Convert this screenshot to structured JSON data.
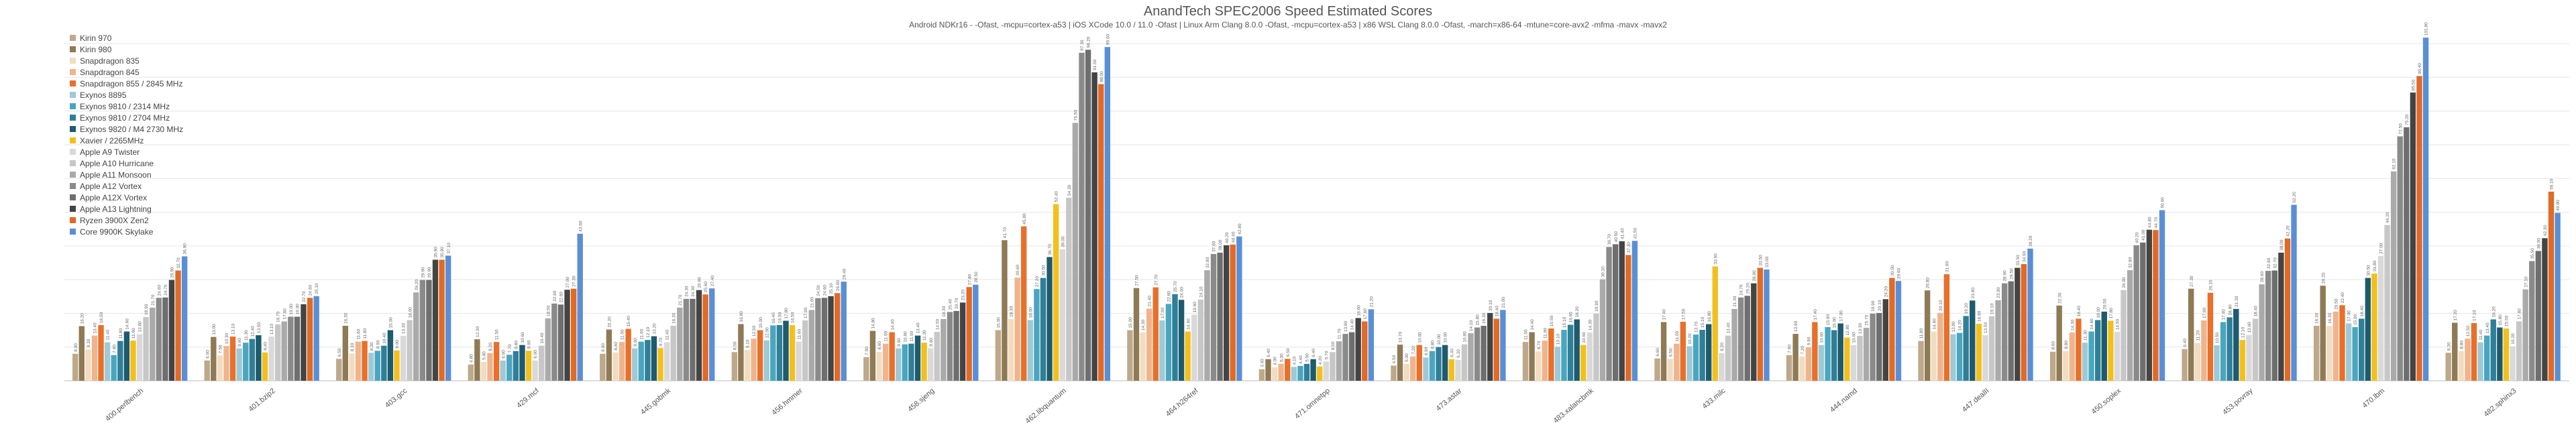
{
  "chart_data": {
    "type": "bar",
    "title": "AnandTech SPEC2006 Speed Estimated Scores",
    "subtitle": "Android NDKr16 - -Ofast, -mcpu=cortex-a53 | iOS XCode 10.0 / 11.0 -Ofast | Linux Arm Clang 8.0.0 -Ofast, -mcpu=cortex-a53 | x86 WSL Clang 8.0.0 -Ofast, -march=x86-64 -mtune=core-avx2 -mfma -mavx -mavx2",
    "categories": [
      "400.perlbench",
      "401.bzip2",
      "403.gcc",
      "429.mcf",
      "445.gobmk",
      "456.hmmer",
      "458.sjeng",
      "462.libquantum",
      "464.h264ref",
      "471.omnetpp",
      "473.astar",
      "483.xalancbmk",
      "433.milc",
      "444.namd",
      "447.dealII",
      "450.soplex",
      "453.povray",
      "470.lbm",
      "482.sphinx3"
    ],
    "ylim": [
      0,
      105
    ],
    "grid": true,
    "legend_placement": "top-left",
    "series": [
      {
        "name": "Kirin 970",
        "color": "#bda98a",
        "values": [
          8.0,
          6.0,
          6.5,
          4.8,
          8.0,
          8.5,
          7.0,
          15.0,
          15.0,
          3.4,
          4.5,
          11.5,
          6.6,
          7.6,
          11.8,
          8.6,
          9.4,
          16.3,
          8.3
        ]
      },
      {
        "name": "Kirin 980",
        "color": "#8e7a55",
        "values": [
          16.2,
          13.0,
          16.3,
          12.3,
          15.2,
          16.8,
          14.8,
          41.7,
          27.5,
          6.4,
          10.7,
          14.4,
          17.4,
          13.9,
          26.8,
          22.3,
          27.3,
          28.2,
          17.2
        ]
      },
      {
        "name": "Snapdragon 835",
        "color": "#f2dcc0",
        "values": [
          9.3,
          7.5,
          8.1,
          5.6,
          8.4,
          9.1,
          8.6,
          18.3,
          14.3,
          4.0,
          5.0,
          8.7,
          6.5,
          7.2,
          14.6,
          8.8,
          11.2,
          16.3,
          8.8
        ]
      },
      {
        "name": "Snapdragon 845",
        "color": "#f0b48c",
        "values": [
          13.4,
          10.3,
          11.6,
          8.2,
          11.5,
          12.5,
          11.0,
          30.6,
          21.4,
          5.0,
          7.2,
          11.9,
          11.0,
          9.9,
          20.1,
          14.3,
          17.9,
          20.5,
          12.5
        ]
      },
      {
        "name": "Snapdragon 855 / 2845 MHz",
        "color": "#e8702a",
        "values": [
          16.5,
          13.1,
          11.8,
          11.5,
          15.4,
          15.0,
          14.4,
          45.8,
          27.7,
          6.5,
          10.6,
          15.5,
          17.5,
          17.4,
          31.6,
          18.4,
          26.1,
          22.4,
          17.1
        ]
      },
      {
        "name": "Exynos 8895",
        "color": "#9ec9d6",
        "values": [
          11.4,
          9.6,
          8.3,
          6.0,
          9.6,
          12.0,
          9.6,
          18.0,
          17.9,
          4.1,
          6.9,
          10.1,
          10.2,
          10.6,
          13.8,
          11.3,
          10.5,
          17.0,
          11.4
        ]
      },
      {
        "name": "Exynos 9810 / 2314 MHz",
        "color": "#4aa6be",
        "values": [
          7.6,
          11.3,
          8.9,
          7.7,
          11.6,
          16.4,
          10.8,
          27.2,
          22.8,
          4.4,
          8.8,
          15.1,
          13.7,
          15.9,
          14.2,
          14.6,
          17.4,
          15.9,
          13.4
        ]
      },
      {
        "name": "Exynos 9810 / 2704 MHz",
        "color": "#2f7f98",
        "values": [
          11.8,
          12.4,
          10.4,
          8.8,
          12.1,
          16.5,
          11.0,
          30.5,
          25.7,
          5.0,
          10.0,
          16.6,
          15.1,
          15.0,
          19.2,
          18.0,
          18.8,
          18.4,
          18.2
        ]
      },
      {
        "name": "Exynos 9820 / M4 2730 MHz",
        "color": "#1d5b6e",
        "values": [
          14.6,
          13.5,
          15.0,
          10.6,
          13.2,
          17.8,
          13.4,
          36.7,
          24.0,
          6.4,
          10.6,
          18.2,
          16.8,
          17.0,
          23.8,
          20.5,
          21.3,
          30.5,
          15.8
        ]
      },
      {
        "name": "Xavier / 2265MHz",
        "color": "#f2c01e",
        "values": [
          11.9,
          8.4,
          9.0,
          8.9,
          9.7,
          16.5,
          11.3,
          52.4,
          14.6,
          4.2,
          6.4,
          10.6,
          33.9,
          12.8,
          16.9,
          17.8,
          12.1,
          31.8,
          15.5
        ]
      },
      {
        "name": "Apple A9 Twister",
        "color": "#d9d9d9",
        "values": [
          13.8,
          13.1,
          13.3,
          6.0,
          11.4,
          11.6,
          9.6,
          39.0,
          19.6,
          5.7,
          6.2,
          14.3,
          8.2,
          10.6,
          13.5,
          14.5,
          13.6,
          37.0,
          10.2
        ]
      },
      {
        "name": "Apple A10 Hurricane",
        "color": "#c7c7c7",
        "values": [
          18.9,
          16.7,
          18.0,
          10.4,
          16.3,
          17.9,
          14.5,
          54.3,
          24.1,
          8.5,
          10.8,
          19.9,
          13.4,
          13.3,
          19.1,
          26.9,
          18.4,
          46.2,
          17.6
        ]
      },
      {
        "name": "Apple A11 Monsoon",
        "color": "#aaaaaa",
        "values": [
          21.7,
          17.6,
          26.2,
          18.5,
          21.7,
          21.0,
          18.3,
          76.5,
          32.8,
          11.7,
          14.1,
          30.1,
          21.3,
          15.7,
          23.9,
          32.8,
          28.6,
          62.1,
          27.1
        ]
      },
      {
        "name": "Apple A12 Vortex",
        "color": "#8a8a8a",
        "values": [
          24.6,
          19.0,
          29.9,
          22.9,
          24.3,
          24.5,
          20.4,
          97.3,
          37.6,
          13.9,
          15.8,
          39.7,
          24.7,
          19.9,
          28.9,
          40.2,
          32.6,
          72.5,
          35.5
        ]
      },
      {
        "name": "Apple A12X Vortex",
        "color": "#6e6e6e",
        "values": [
          24.7,
          19.0,
          29.9,
          22.6,
          24.3,
          24.6,
          20.7,
          98.2,
          38.0,
          14.4,
          16.3,
          40.5,
          25.2,
          20.1,
          29.5,
          41.0,
          32.7,
          75.2,
          38.5
        ]
      },
      {
        "name": "Apple A13 Lightning",
        "color": "#444444",
        "values": [
          29.9,
          22.7,
          35.9,
          27.0,
          26.9,
          25.1,
          23.2,
          91.5,
          40.2,
          18.6,
          20.1,
          41.4,
          28.9,
          24.2,
          33.5,
          44.8,
          38.0,
          85.5,
          42.3
        ]
      },
      {
        "name": "Ryzen 3900X Zen2",
        "color": "#e06a26",
        "values": [
          32.7,
          24.6,
          35.9,
          27.3,
          25.6,
          26.0,
          27.8,
          88.0,
          40.4,
          17.6,
          18.4,
          37.3,
          33.5,
          30.5,
          34.6,
          44.7,
          42.2,
          90.4,
          56.1
        ]
      },
      {
        "name": "Core 9900K Skylake",
        "color": "#5a8fd6",
        "values": [
          36.9,
          25.1,
          37.1,
          43.6,
          27.4,
          29.4,
          28.5,
          99.0,
          42.8,
          21.2,
          21.0,
          41.5,
          33.0,
          29.6,
          39.2,
          50.6,
          52.2,
          101.8,
          49.8
        ]
      }
    ]
  }
}
